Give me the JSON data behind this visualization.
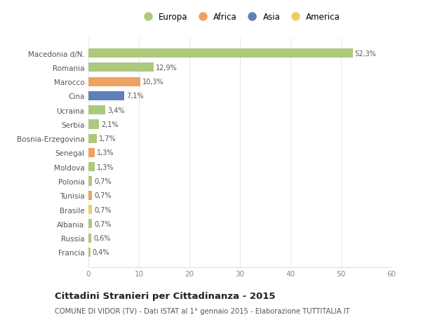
{
  "categories": [
    "Francia",
    "Russia",
    "Albania",
    "Brasile",
    "Tunisia",
    "Polonia",
    "Moldova",
    "Senegal",
    "Bosnia-Erzegovina",
    "Serbia",
    "Ucraina",
    "Cina",
    "Marocco",
    "Romania",
    "Macedonia d/N."
  ],
  "values": [
    0.4,
    0.6,
    0.7,
    0.7,
    0.7,
    0.7,
    1.3,
    1.3,
    1.7,
    2.1,
    3.4,
    7.1,
    10.3,
    12.9,
    52.3
  ],
  "colors": [
    "#adc97e",
    "#adc97e",
    "#adc97e",
    "#f5c96a",
    "#f0a060",
    "#adc97e",
    "#adc97e",
    "#f0a060",
    "#adc97e",
    "#adc97e",
    "#adc97e",
    "#6080b8",
    "#f0a060",
    "#adc97e",
    "#adc97e"
  ],
  "labels": [
    "0,4%",
    "0,6%",
    "0,7%",
    "0,7%",
    "0,7%",
    "0,7%",
    "1,3%",
    "1,3%",
    "1,7%",
    "2,1%",
    "3,4%",
    "7,1%",
    "10,3%",
    "12,9%",
    "52,3%"
  ],
  "legend_labels": [
    "Europa",
    "Africa",
    "Asia",
    "America"
  ],
  "legend_colors": [
    "#adc97e",
    "#f0a060",
    "#6080b8",
    "#f5c96a"
  ],
  "xlim": [
    0,
    60
  ],
  "xticks": [
    0,
    10,
    20,
    30,
    40,
    50,
    60
  ],
  "title": "Cittadini Stranieri per Cittadinanza - 2015",
  "subtitle": "COMUNE DI VIDOR (TV) - Dati ISTAT al 1° gennaio 2015 - Elaborazione TUTTITALIA.IT",
  "background_color": "#ffffff",
  "grid_color": "#e8e8e8",
  "bar_height": 0.65
}
